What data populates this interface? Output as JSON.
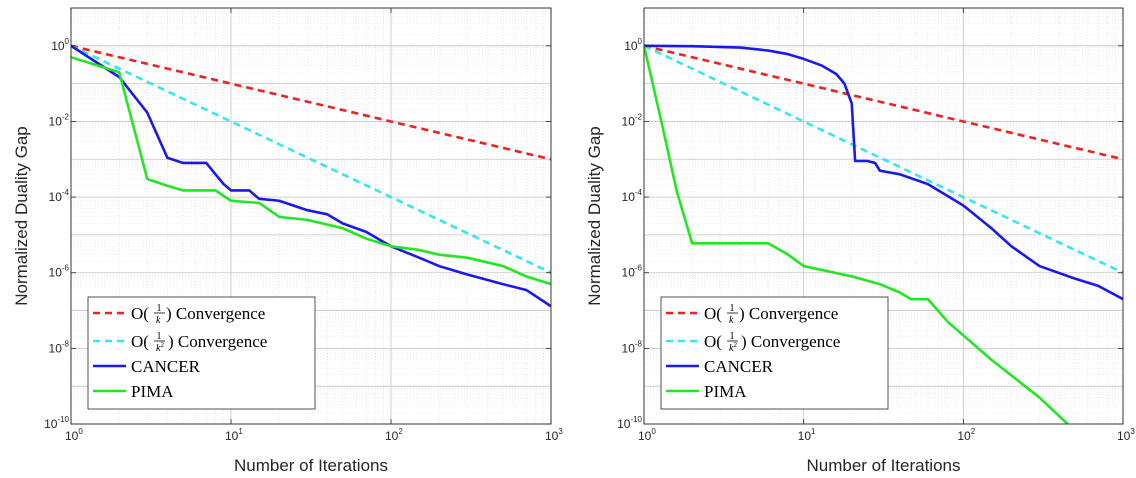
{
  "chart_data": [
    {
      "type": "line",
      "xlabel": "Number of Iterations",
      "ylabel": "Normalized Duality Gap",
      "xscale": "log",
      "yscale": "log",
      "xlim": [
        1,
        1000
      ],
      "ylim": [
        1e-10,
        10
      ],
      "grid": true,
      "legend_position": "bottom-left",
      "x_ticks": [
        {
          "v": 1,
          "mant": "10",
          "exp": "0"
        },
        {
          "v": 10,
          "mant": "10",
          "exp": "1"
        },
        {
          "v": 100,
          "mant": "10",
          "exp": "2"
        },
        {
          "v": 1000,
          "mant": "10",
          "exp": "3"
        }
      ],
      "y_ticks": [
        {
          "v": 1,
          "mant": "10",
          "exp": "0"
        },
        {
          "v": 0.01,
          "mant": "10",
          "exp": "-2"
        },
        {
          "v": 0.0001,
          "mant": "10",
          "exp": "-4"
        },
        {
          "v": 1e-06,
          "mant": "10",
          "exp": "-6"
        },
        {
          "v": 1e-08,
          "mant": "10",
          "exp": "-8"
        },
        {
          "v": 1e-10,
          "mant": "10",
          "exp": "-10"
        }
      ],
      "series": [
        {
          "name": "O(1/k) Convergence",
          "legend_main": "O(",
          "legend_num": "1",
          "legend_den": "k",
          "legend_den_exp": "",
          "legend_suffix": ") Convergence",
          "color": "#ee2020",
          "dash": true,
          "points": [
            [
              1,
              1
            ],
            [
              1000,
              0.001
            ]
          ]
        },
        {
          "name": "O(1/k^2) Convergence",
          "legend_main": "O(",
          "legend_num": "1",
          "legend_den": "k",
          "legend_den_exp": "2",
          "legend_suffix": ") Convergence",
          "color": "#33e6f0",
          "dash": true,
          "points": [
            [
              1,
              1
            ],
            [
              1000,
              1e-06
            ]
          ]
        },
        {
          "name": "CANCER",
          "legend_main": "CANCER",
          "color": "#1a1ae6",
          "dash": false,
          "points": [
            [
              1,
              1
            ],
            [
              2,
              0.15
            ],
            [
              3,
              0.017
            ],
            [
              4,
              0.0011
            ],
            [
              5,
              0.0008
            ],
            [
              7,
              0.0008
            ],
            [
              8,
              0.0004
            ],
            [
              9,
              0.00022
            ],
            [
              10,
              0.00015
            ],
            [
              13,
              0.00015
            ],
            [
              15,
              9e-05
            ],
            [
              20,
              8e-05
            ],
            [
              30,
              4.5e-05
            ],
            [
              40,
              3.5e-05
            ],
            [
              50,
              2e-05
            ],
            [
              70,
              1.2e-05
            ],
            [
              100,
              5e-06
            ],
            [
              150,
              2.5e-06
            ],
            [
              200,
              1.5e-06
            ],
            [
              300,
              9e-07
            ],
            [
              500,
              5e-07
            ],
            [
              700,
              3.5e-07
            ],
            [
              1000,
              1.3e-07
            ]
          ]
        },
        {
          "name": "PIMA",
          "legend_main": "PIMA",
          "color": "#22e622",
          "dash": false,
          "points": [
            [
              1,
              0.5
            ],
            [
              2,
              0.2
            ],
            [
              3,
              0.0003
            ],
            [
              4,
              0.0002
            ],
            [
              5,
              0.00015
            ],
            [
              8,
              0.00015
            ],
            [
              10,
              8e-05
            ],
            [
              15,
              7e-05
            ],
            [
              20,
              3e-05
            ],
            [
              30,
              2.5e-05
            ],
            [
              50,
              1.5e-05
            ],
            [
              70,
              8e-06
            ],
            [
              100,
              5e-06
            ],
            [
              150,
              4e-06
            ],
            [
              200,
              3e-06
            ],
            [
              300,
              2.5e-06
            ],
            [
              500,
              1.5e-06
            ],
            [
              700,
              8e-07
            ],
            [
              1000,
              5e-07
            ]
          ]
        }
      ]
    },
    {
      "type": "line",
      "xlabel": "Number of Iterations",
      "ylabel": "Normalized Duality Gap",
      "xscale": "log",
      "yscale": "log",
      "xlim": [
        1,
        1000
      ],
      "ylim": [
        1e-10,
        10
      ],
      "grid": true,
      "legend_position": "bottom-left",
      "x_ticks": [
        {
          "v": 1,
          "mant": "10",
          "exp": "0"
        },
        {
          "v": 10,
          "mant": "10",
          "exp": "1"
        },
        {
          "v": 100,
          "mant": "10",
          "exp": "2"
        },
        {
          "v": 1000,
          "mant": "10",
          "exp": "3"
        }
      ],
      "y_ticks": [
        {
          "v": 1,
          "mant": "10",
          "exp": "0"
        },
        {
          "v": 0.01,
          "mant": "10",
          "exp": "-2"
        },
        {
          "v": 0.0001,
          "mant": "10",
          "exp": "-4"
        },
        {
          "v": 1e-06,
          "mant": "10",
          "exp": "-6"
        },
        {
          "v": 1e-08,
          "mant": "10",
          "exp": "-8"
        },
        {
          "v": 1e-10,
          "mant": "10",
          "exp": "-10"
        }
      ],
      "series": [
        {
          "name": "O(1/k) Convergence",
          "legend_main": "O(",
          "legend_num": "1",
          "legend_den": "k",
          "legend_den_exp": "",
          "legend_suffix": ") Convergence",
          "color": "#ee2020",
          "dash": true,
          "points": [
            [
              1,
              1
            ],
            [
              1000,
              0.001
            ]
          ]
        },
        {
          "name": "O(1/k^2) Convergence",
          "legend_main": "O(",
          "legend_num": "1",
          "legend_den": "k",
          "legend_den_exp": "2",
          "legend_suffix": ") Convergence",
          "color": "#33e6f0",
          "dash": true,
          "points": [
            [
              1,
              1
            ],
            [
              1000,
              1e-06
            ]
          ]
        },
        {
          "name": "CANCER",
          "legend_main": "CANCER",
          "color": "#1a1ae6",
          "dash": false,
          "points": [
            [
              1,
              1
            ],
            [
              2,
              0.98
            ],
            [
              4,
              0.9
            ],
            [
              6,
              0.75
            ],
            [
              8,
              0.6
            ],
            [
              10,
              0.45
            ],
            [
              13,
              0.3
            ],
            [
              16,
              0.18
            ],
            [
              18,
              0.1
            ],
            [
              20,
              0.03
            ],
            [
              21,
              0.0009
            ],
            [
              25,
              0.0009
            ],
            [
              28,
              0.0008
            ],
            [
              30,
              0.0005
            ],
            [
              40,
              0.0004
            ],
            [
              60,
              0.00022
            ],
            [
              100,
              6e-05
            ],
            [
              150,
              1.5e-05
            ],
            [
              200,
              5e-06
            ],
            [
              300,
              1.5e-06
            ],
            [
              500,
              7e-07
            ],
            [
              700,
              4.5e-07
            ],
            [
              1000,
              2e-07
            ]
          ]
        },
        {
          "name": "PIMA",
          "legend_main": "PIMA",
          "color": "#22e622",
          "dash": false,
          "points": [
            [
              1,
              1
            ],
            [
              1.3,
              0.008
            ],
            [
              1.6,
              0.00015
            ],
            [
              2,
              6e-06
            ],
            [
              3,
              6e-06
            ],
            [
              6,
              6e-06
            ],
            [
              8,
              3e-06
            ],
            [
              10,
              1.5e-06
            ],
            [
              20,
              8e-07
            ],
            [
              30,
              5e-07
            ],
            [
              40,
              3e-07
            ],
            [
              47,
              2e-07
            ],
            [
              60,
              2e-07
            ],
            [
              80,
              5e-08
            ],
            [
              150,
              5e-09
            ],
            [
              300,
              5e-10
            ],
            [
              450,
              1e-10
            ]
          ]
        }
      ]
    }
  ]
}
